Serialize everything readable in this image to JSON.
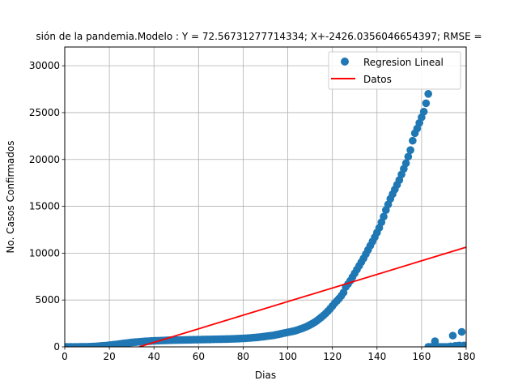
{
  "chart_data": {
    "type": "scatter",
    "title": "sión de la pandemia.Modelo : Y = 72.56731277714334; X+-2426.0356046654397; RMSE = ",
    "xlabel": "Dias",
    "ylabel": "No. Casos Confirmados",
    "xlim": [
      0,
      180
    ],
    "ylim": [
      0,
      32000
    ],
    "xticks": [
      0,
      20,
      40,
      60,
      80,
      100,
      120,
      140,
      160,
      180
    ],
    "yticks": [
      0,
      5000,
      10000,
      15000,
      20000,
      25000,
      30000
    ],
    "grid": true,
    "legend_position": "top-right",
    "series": [
      {
        "name": "Regresion Lineal",
        "kind": "scatter",
        "color": "#1f77b4",
        "points": [
          [
            0,
            0
          ],
          [
            1,
            0
          ],
          [
            2,
            0
          ],
          [
            3,
            0
          ],
          [
            4,
            0
          ],
          [
            5,
            0
          ],
          [
            6,
            1
          ],
          [
            7,
            3
          ],
          [
            8,
            5
          ],
          [
            9,
            7
          ],
          [
            10,
            10
          ],
          [
            11,
            15
          ],
          [
            12,
            25
          ],
          [
            13,
            40
          ],
          [
            14,
            55
          ],
          [
            15,
            70
          ],
          [
            16,
            90
          ],
          [
            17,
            110
          ],
          [
            18,
            130
          ],
          [
            19,
            150
          ],
          [
            20,
            175
          ],
          [
            21,
            200
          ],
          [
            22,
            230
          ],
          [
            23,
            260
          ],
          [
            24,
            290
          ],
          [
            25,
            320
          ],
          [
            26,
            350
          ],
          [
            27,
            380
          ],
          [
            28,
            410
          ],
          [
            29,
            440
          ],
          [
            30,
            470
          ],
          [
            31,
            490
          ],
          [
            32,
            510
          ],
          [
            33,
            530
          ],
          [
            34,
            550
          ],
          [
            35,
            570
          ],
          [
            36,
            585
          ],
          [
            37,
            600
          ],
          [
            38,
            615
          ],
          [
            39,
            630
          ],
          [
            40,
            640
          ],
          [
            41,
            650
          ],
          [
            42,
            660
          ],
          [
            43,
            670
          ],
          [
            44,
            680
          ],
          [
            45,
            690
          ],
          [
            46,
            700
          ],
          [
            47,
            705
          ],
          [
            48,
            710
          ],
          [
            49,
            715
          ],
          [
            50,
            720
          ],
          [
            51,
            725
          ],
          [
            52,
            730
          ],
          [
            53,
            735
          ],
          [
            54,
            740
          ],
          [
            55,
            745
          ],
          [
            56,
            750
          ],
          [
            57,
            755
          ],
          [
            58,
            760
          ],
          [
            59,
            765
          ],
          [
            60,
            770
          ],
          [
            61,
            775
          ],
          [
            62,
            780
          ],
          [
            63,
            785
          ],
          [
            64,
            790
          ],
          [
            65,
            795
          ],
          [
            66,
            800
          ],
          [
            67,
            805
          ],
          [
            68,
            810
          ],
          [
            69,
            815
          ],
          [
            70,
            820
          ],
          [
            71,
            825
          ],
          [
            72,
            830
          ],
          [
            73,
            835
          ],
          [
            74,
            840
          ],
          [
            75,
            850
          ],
          [
            76,
            860
          ],
          [
            77,
            870
          ],
          [
            78,
            880
          ],
          [
            79,
            890
          ],
          [
            80,
            900
          ],
          [
            81,
            915
          ],
          [
            82,
            930
          ],
          [
            83,
            950
          ],
          [
            84,
            970
          ],
          [
            85,
            990
          ],
          [
            86,
            1010
          ],
          [
            87,
            1030
          ],
          [
            88,
            1060
          ],
          [
            89,
            1090
          ],
          [
            90,
            1120
          ],
          [
            91,
            1150
          ],
          [
            92,
            1180
          ],
          [
            93,
            1210
          ],
          [
            94,
            1250
          ],
          [
            95,
            1300
          ],
          [
            96,
            1350
          ],
          [
            97,
            1400
          ],
          [
            98,
            1450
          ],
          [
            99,
            1500
          ],
          [
            100,
            1550
          ],
          [
            101,
            1600
          ],
          [
            102,
            1650
          ],
          [
            103,
            1700
          ],
          [
            104,
            1770
          ],
          [
            105,
            1850
          ],
          [
            106,
            1930
          ],
          [
            107,
            2020
          ],
          [
            108,
            2120
          ],
          [
            109,
            2230
          ],
          [
            110,
            2350
          ],
          [
            111,
            2480
          ],
          [
            112,
            2620
          ],
          [
            113,
            2780
          ],
          [
            114,
            2960
          ],
          [
            115,
            3150
          ],
          [
            116,
            3350
          ],
          [
            117,
            3570
          ],
          [
            118,
            3810
          ],
          [
            119,
            4070
          ],
          [
            120,
            4350
          ],
          [
            121,
            4650
          ],
          [
            122,
            4900
          ],
          [
            123,
            5150
          ],
          [
            124,
            5450
          ],
          [
            125,
            5800
          ],
          [
            126,
            6400
          ],
          [
            127,
            6700
          ],
          [
            128,
            7050
          ],
          [
            129,
            7450
          ],
          [
            130,
            7850
          ],
          [
            131,
            8250
          ],
          [
            132,
            8650
          ],
          [
            133,
            9050
          ],
          [
            134,
            9450
          ],
          [
            135,
            9900
          ],
          [
            136,
            10350
          ],
          [
            137,
            10800
          ],
          [
            138,
            11250
          ],
          [
            139,
            11700
          ],
          [
            140,
            12200
          ],
          [
            141,
            12700
          ],
          [
            142,
            13300
          ],
          [
            143,
            13900
          ],
          [
            144,
            14600
          ],
          [
            145,
            15200
          ],
          [
            146,
            15800
          ],
          [
            147,
            16300
          ],
          [
            148,
            16800
          ],
          [
            149,
            17300
          ],
          [
            150,
            17800
          ],
          [
            151,
            18400
          ],
          [
            152,
            19000
          ],
          [
            153,
            19600
          ],
          [
            154,
            20300
          ],
          [
            155,
            21000
          ],
          [
            156,
            22000
          ],
          [
            157,
            22800
          ],
          [
            158,
            23300
          ],
          [
            159,
            23900
          ],
          [
            160,
            24500
          ],
          [
            161,
            25100
          ],
          [
            162,
            26000
          ],
          [
            163,
            27000
          ],
          [
            163,
            0
          ],
          [
            164,
            0
          ],
          [
            165,
            0
          ],
          [
            166,
            600
          ],
          [
            167,
            0
          ],
          [
            168,
            0
          ],
          [
            169,
            0
          ],
          [
            170,
            0
          ],
          [
            171,
            0
          ],
          [
            172,
            0
          ],
          [
            173,
            50
          ],
          [
            174,
            1200
          ],
          [
            175,
            100
          ],
          [
            176,
            100
          ],
          [
            177,
            150
          ],
          [
            178,
            1600
          ],
          [
            179,
            150
          ]
        ]
      },
      {
        "name": "Datos",
        "kind": "line",
        "color": "#ff0000",
        "slope": 72.56731277714334,
        "intercept": -2426.0356046654397,
        "x_range": [
          33.43,
          180
        ]
      }
    ]
  }
}
